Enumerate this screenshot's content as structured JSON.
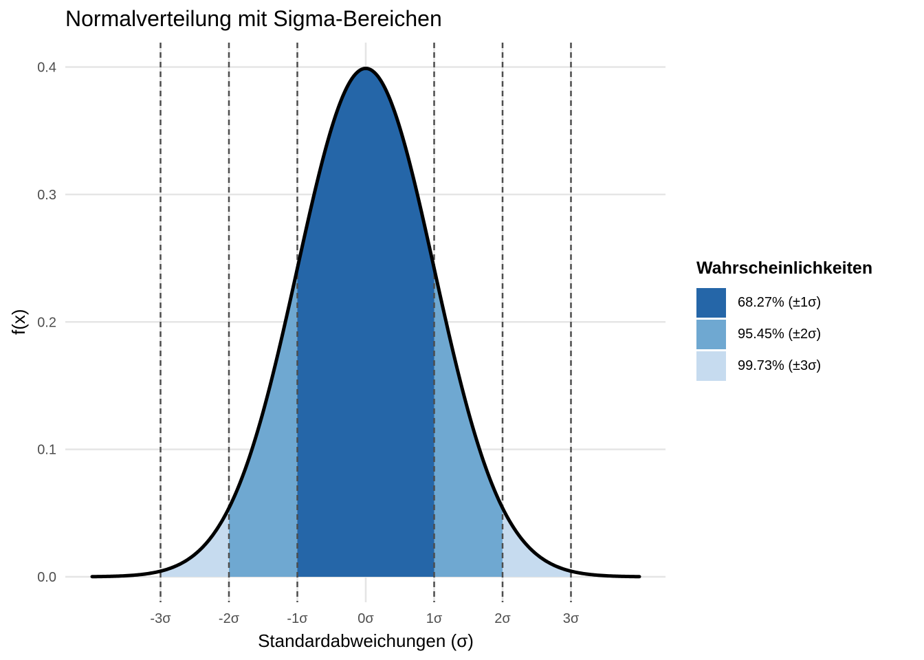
{
  "chart_data": {
    "type": "area",
    "title": "Normalverteilung mit Sigma-Bereichen",
    "xlabel": "Standardabweichungen (σ)",
    "ylabel": "f(x)",
    "xlim": [
      -4,
      4
    ],
    "ylim": [
      0,
      0.4
    ],
    "x_ticks": [
      -3,
      -2,
      -1,
      0,
      1,
      2,
      3
    ],
    "x_tick_labels": [
      "-3σ",
      "-2σ",
      "-1σ",
      "0σ",
      "1σ",
      "2σ",
      "3σ"
    ],
    "y_ticks": [
      0.0,
      0.1,
      0.2,
      0.3,
      0.4
    ],
    "y_tick_labels": [
      "0.0",
      "0.1",
      "0.2",
      "0.3",
      "0.4"
    ],
    "grid": true,
    "curve": {
      "function": "standard normal density",
      "x": [
        -4,
        -3.5,
        -3,
        -2.5,
        -2,
        -1.5,
        -1,
        -0.5,
        0,
        0.5,
        1,
        1.5,
        2,
        2.5,
        3,
        3.5,
        4
      ],
      "y": [
        0.0001,
        0.0009,
        0.0044,
        0.0175,
        0.054,
        0.1295,
        0.242,
        0.3521,
        0.3989,
        0.3521,
        0.242,
        0.1295,
        0.054,
        0.0175,
        0.0044,
        0.0009,
        0.0001
      ],
      "color": "#000000"
    },
    "vertical_lines": [
      -3,
      -2,
      -1,
      1,
      2,
      3
    ],
    "shaded_regions": [
      {
        "name": "99.73% (±3σ)",
        "from": -3,
        "to": 3,
        "color": "#c6dbef"
      },
      {
        "name": "95.45% (±2σ)",
        "from": -2,
        "to": 2,
        "color": "#6fa8d1"
      },
      {
        "name": "68.27% (±1σ)",
        "from": -1,
        "to": 1,
        "color": "#2566a8"
      }
    ],
    "legend": {
      "title": "Wahrscheinlichkeiten",
      "position": "right",
      "items": [
        {
          "label": "68.27% (±1σ)",
          "color": "#2566a8"
        },
        {
          "label": "95.45% (±2σ)",
          "color": "#6fa8d1"
        },
        {
          "label": "99.73% (±3σ)",
          "color": "#c6dbef"
        }
      ]
    }
  }
}
